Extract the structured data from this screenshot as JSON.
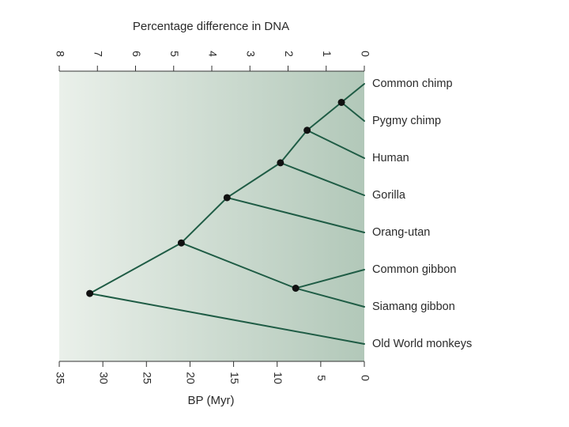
{
  "top_axis": {
    "title": "Percentage difference in DNA",
    "ticks": [
      8,
      7,
      6,
      5,
      4,
      3,
      2,
      1,
      0
    ],
    "range": [
      8,
      0
    ]
  },
  "bottom_axis": {
    "title": "BP (Myr)",
    "ticks": [
      35,
      30,
      25,
      20,
      15,
      10,
      5,
      0
    ],
    "range": [
      35,
      0
    ]
  },
  "taxa": [
    "Common chimp",
    "Pygmy chimp",
    "Human",
    "Gorilla",
    "Orang-utan",
    "Common gibbon",
    "Siamang gibbon",
    "Old World monkeys"
  ],
  "nodes": [
    {
      "id": "chimps",
      "pct_diff": 0.6,
      "children": [
        "Common chimp",
        "Pygmy chimp"
      ]
    },
    {
      "id": "chimps_human",
      "pct_diff": 1.5,
      "children": [
        "chimps",
        "Human"
      ]
    },
    {
      "id": "african_apes",
      "pct_diff": 2.2,
      "children": [
        "chimps_human",
        "Gorilla"
      ]
    },
    {
      "id": "great_apes",
      "pct_diff": 3.6,
      "children": [
        "african_apes",
        "Orang-utan"
      ]
    },
    {
      "id": "gibbons",
      "pct_diff": 1.8,
      "children": [
        "Common gibbon",
        "Siamang gibbon"
      ]
    },
    {
      "id": "hominoids",
      "pct_diff": 4.8,
      "children": [
        "great_apes",
        "gibbons"
      ]
    },
    {
      "id": "root",
      "pct_diff": 7.2,
      "children": [
        "hominoids",
        "Old World monkeys"
      ]
    }
  ],
  "colors": {
    "branch": "#1f5c45",
    "node": "#111111",
    "panel_light": "#eaf0ea",
    "panel_dark": "#b2c8b9",
    "axis": "#333333"
  }
}
